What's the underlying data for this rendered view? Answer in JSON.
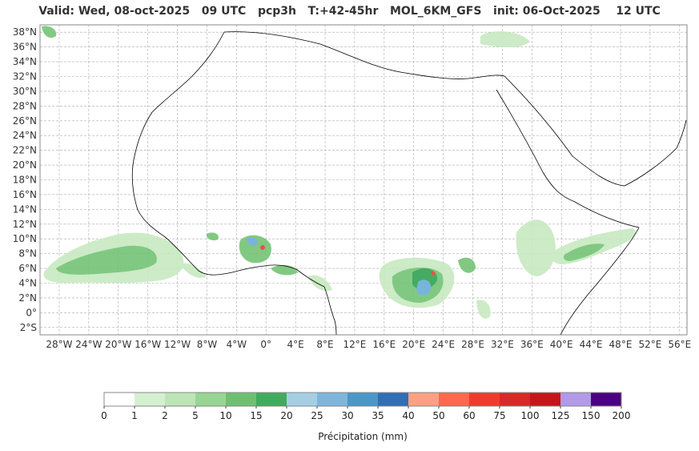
{
  "title": "Valid: Wed, 08-oct-2025   09 UTC   pcp3h   T:+42-45hr   MOL_6KM_GFS   init: 06-Oct-2025    12 UTC",
  "map": {
    "lon_range": [
      -30.6,
      57.0
    ],
    "lat_range": [
      -3.0,
      39.0
    ],
    "lat_ticks": [
      "38°N",
      "36°N",
      "34°N",
      "32°N",
      "30°N",
      "28°N",
      "26°N",
      "24°N",
      "22°N",
      "20°N",
      "18°N",
      "16°N",
      "14°N",
      "12°N",
      "10°N",
      "8°N",
      "6°N",
      "4°N",
      "2°N",
      "0°",
      "2°S"
    ],
    "lon_ticks": [
      "28°W",
      "24°W",
      "20°W",
      "16°W",
      "12°W",
      "8°W",
      "4°W",
      "0°",
      "4°E",
      "8°E",
      "12°E",
      "16°E",
      "20°E",
      "24°E",
      "28°E",
      "32°E",
      "36°E",
      "40°E",
      "44°E",
      "48°E",
      "52°E",
      "56°E"
    ],
    "gridlines": true
  },
  "colorbar": {
    "label": "Précipitation (mm)",
    "ticks": [
      "0",
      "1",
      "2",
      "5",
      "10",
      "15",
      "20",
      "25",
      "30",
      "35",
      "40",
      "50",
      "60",
      "75",
      "100",
      "125",
      "150",
      "200"
    ],
    "colors": [
      "#ffffff",
      "#d4f0d0",
      "#bde5b6",
      "#98d594",
      "#6dc072",
      "#41ab5d",
      "#a6cee3",
      "#7fb5dc",
      "#4a97c9",
      "#2f6fb5",
      "#fca082",
      "#fb6a4a",
      "#ef3b2c",
      "#d62a26",
      "#c3161b",
      "#b19ae8",
      "#4b0082"
    ]
  },
  "colors": {
    "land_outline": "#000000",
    "grid": "#aaaaaa",
    "precip_light": "#c7e9c0",
    "precip_mid": "#74c476",
    "precip_heavy": "#31a354",
    "precip_blue": "#6baed6",
    "precip_red": "#ef3b2c"
  }
}
